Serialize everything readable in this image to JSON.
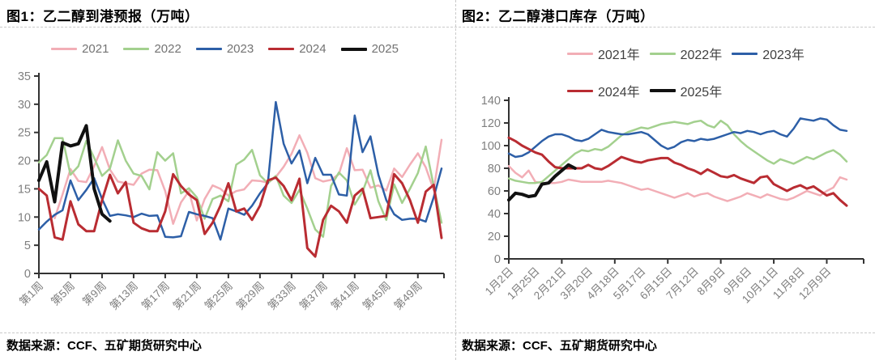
{
  "page": {
    "panels": [
      {
        "title": "图1：乙二醇到港预报（万吨）",
        "source": "数据来源：CCF、五矿期货研究中心"
      },
      {
        "title": "图2：乙二醇港口库存（万吨）",
        "source": "数据来源：CCF、五矿期货研究中心"
      }
    ]
  },
  "colors": {
    "axis": "#333333",
    "tick_label": "#7f7f7f",
    "divider": "#c9c9c9",
    "title_text": "#000000",
    "series_2021": "#f2aeb6",
    "series_2022": "#a3d08e",
    "series_2023": "#2d5fa7",
    "series_2024": "#b92c32",
    "series_2025": "#111111"
  },
  "chart_data": [
    {
      "type": "line",
      "title": "图1：乙二醇到港预报（万吨）",
      "xlabel": "",
      "ylabel": "",
      "ylim": [
        0,
        35
      ],
      "y_ticks": [
        0,
        5,
        10,
        15,
        20,
        25,
        30,
        35
      ],
      "grid": false,
      "legend_position": "top-center",
      "legend_rows": [
        5
      ],
      "x_total_points": 52,
      "x_tick_step_points": 4,
      "x_tick_mark_every": 1,
      "x_tick_labels": [
        "第1周",
        "第5周",
        "第9周",
        "第13周",
        "第17周",
        "第21周",
        "第25周",
        "第29周",
        "第33周",
        "第37周",
        "第41周",
        "第45周",
        "第49周"
      ],
      "series": [
        {
          "name": "2021",
          "color": "#f2aeb6",
          "values": [
            null,
            null,
            9.8,
            14.0,
            18.5,
            16.4,
            16.2,
            19.0,
            22.4,
            18.4,
            16.3,
            16.0,
            15.7,
            17.7,
            18.4,
            18.3,
            14.6,
            8.8,
            12.6,
            14.6,
            9.4,
            13.2,
            15.6,
            15.0,
            13.8,
            14.6,
            14.9,
            16.5,
            16.4,
            16.1,
            17.1,
            18.9,
            21.2,
            24.5,
            21.4,
            16.9,
            16.3,
            16.6,
            17.6,
            22.2,
            18.3,
            18.4,
            15.2,
            15.6,
            14.7,
            18.6,
            17.1,
            19.3,
            21.3,
            18.8,
            14.8,
            23.7
          ]
        },
        {
          "name": "2022",
          "color": "#a3d08e",
          "values": [
            19.7,
            21.0,
            24.0,
            24.0,
            17.5,
            19.0,
            23.5,
            20.5,
            17.3,
            18.6,
            23.6,
            20.0,
            17.7,
            17.3,
            14.9,
            21.5,
            20.0,
            21.3,
            14.2,
            15.1,
            13.5,
            9.7,
            13.2,
            13.8,
            12.8,
            19.3,
            20.2,
            21.9,
            17.4,
            16.0,
            17.3,
            13.8,
            12.5,
            14.8,
            11.5,
            7.8,
            6.5,
            15.5,
            17.9,
            16.5,
            12.2,
            14.5,
            18.3,
            12.8,
            9.5,
            15.8,
            12.5,
            15.0,
            17.8,
            22.5,
            15.5,
            9.0
          ]
        },
        {
          "name": "2023",
          "color": "#2d5fa7",
          "values": [
            7.8,
            9.2,
            10.4,
            11.2,
            16.5,
            13.0,
            14.8,
            16.9,
            13.2,
            10.2,
            10.5,
            10.3,
            10.0,
            10.6,
            10.2,
            10.3,
            6.5,
            6.4,
            6.6,
            10.9,
            10.5,
            10.2,
            9.8,
            6.0,
            11.5,
            11.0,
            10.4,
            12.0,
            14.2,
            16.0,
            30.4,
            23.0,
            19.5,
            21.8,
            16.0,
            20.5,
            17.5,
            17.5,
            14.0,
            13.8,
            28.0,
            21.5,
            24.3,
            17.5,
            13.0,
            10.5,
            9.5,
            9.7,
            9.7,
            9.2,
            13.5,
            18.6
          ]
        },
        {
          "name": "2024",
          "color": "#b92c32",
          "values": [
            15.0,
            13.8,
            6.4,
            6.0,
            12.8,
            8.7,
            7.5,
            7.5,
            13.0,
            17.5,
            14.2,
            16.2,
            9.0,
            8.0,
            7.5,
            7.5,
            11.0,
            17.6,
            15.5,
            14.0,
            13.0,
            7.0,
            9.0,
            12.0,
            16.0,
            11.0,
            11.5,
            9.5,
            12.0,
            16.5,
            17.0,
            15.5,
            13.0,
            16.8,
            4.5,
            3.0,
            9.5,
            12.0,
            11.0,
            9.0,
            13.8,
            15.0,
            9.8,
            10.0,
            10.2,
            17.6,
            16.0,
            13.0,
            9.0,
            14.5,
            15.7,
            6.3
          ]
        },
        {
          "name": "2025",
          "color": "#111111",
          "values": [
            16.5,
            19.8,
            12.7,
            23.2,
            22.6,
            23.0,
            26.2,
            15.0,
            10.5,
            9.3
          ]
        }
      ]
    },
    {
      "type": "line",
      "title": "图2：乙二醇港口库存（万吨）",
      "xlabel": "",
      "ylabel": "",
      "ylim": [
        0,
        140
      ],
      "y_ticks": [
        0,
        20,
        40,
        60,
        80,
        100,
        120,
        140
      ],
      "grid": false,
      "legend_position": "top-center",
      "legend_rows": [
        3,
        2
      ],
      "x_total_points": 52,
      "x_tick_step_points": 4,
      "x_tick_mark_every": 2,
      "x_tick_labels": [
        "1月2日",
        "1月25日",
        "2月21日",
        "3月20日",
        "4月18日",
        "5月17日",
        "6月15日",
        "7月12日",
        "8月9日",
        "9月6日",
        "10月11日",
        "11月8日",
        "12月9日"
      ],
      "series": [
        {
          "name": "2021年",
          "color": "#f2aeb6",
          "values": [
            82,
            76,
            72,
            78,
            68,
            67,
            67,
            67,
            68,
            70,
            69,
            68,
            68,
            68,
            68,
            69,
            68,
            67,
            65,
            63,
            61,
            62,
            60,
            58,
            56,
            54,
            56,
            58,
            55,
            57,
            58,
            55,
            53,
            51,
            53,
            55,
            58,
            56,
            54,
            57,
            55,
            53,
            52,
            54,
            57,
            60,
            58,
            56,
            60,
            63,
            72,
            70
          ]
        },
        {
          "name": "2022年",
          "color": "#a3d08e",
          "values": [
            71,
            69,
            68,
            67,
            67,
            68,
            73,
            78,
            83,
            88,
            93,
            96,
            95,
            97,
            96,
            99,
            104,
            109,
            112,
            114,
            116,
            115,
            117,
            119,
            120,
            121,
            120,
            119,
            121,
            122,
            118,
            116,
            122,
            118,
            110,
            104,
            99,
            95,
            91,
            87,
            84,
            88,
            86,
            84,
            87,
            90,
            88,
            91,
            94,
            96,
            92,
            86
          ]
        },
        {
          "name": "2023年",
          "color": "#2d5fa7",
          "values": [
            93,
            90,
            91,
            94,
            99,
            104,
            108,
            110,
            110,
            108,
            105,
            104,
            106,
            110,
            114,
            112,
            111,
            110,
            110,
            111,
            112,
            110,
            105,
            100,
            97,
            99,
            103,
            105,
            104,
            106,
            105,
            106,
            108,
            110,
            112,
            111,
            113,
            112,
            110,
            112,
            113,
            110,
            108,
            115,
            124,
            123,
            122,
            124,
            123,
            118,
            114,
            113
          ]
        },
        {
          "name": "2024年",
          "color": "#b92c32",
          "values": [
            107,
            104,
            100,
            97,
            94,
            92,
            86,
            81,
            80,
            80,
            80,
            80,
            83,
            80,
            79,
            82,
            86,
            90,
            88,
            86,
            85,
            87,
            88,
            89,
            89,
            85,
            83,
            80,
            78,
            75,
            79,
            76,
            73,
            72,
            74,
            71,
            69,
            67,
            72,
            73,
            66,
            63,
            60,
            63,
            65,
            62,
            64,
            60,
            56,
            58,
            52,
            47
          ]
        },
        {
          "name": "2025年",
          "color": "#111111",
          "values": [
            52,
            58,
            57,
            55,
            56,
            66,
            67,
            73,
            78,
            83,
            80
          ]
        }
      ]
    }
  ]
}
